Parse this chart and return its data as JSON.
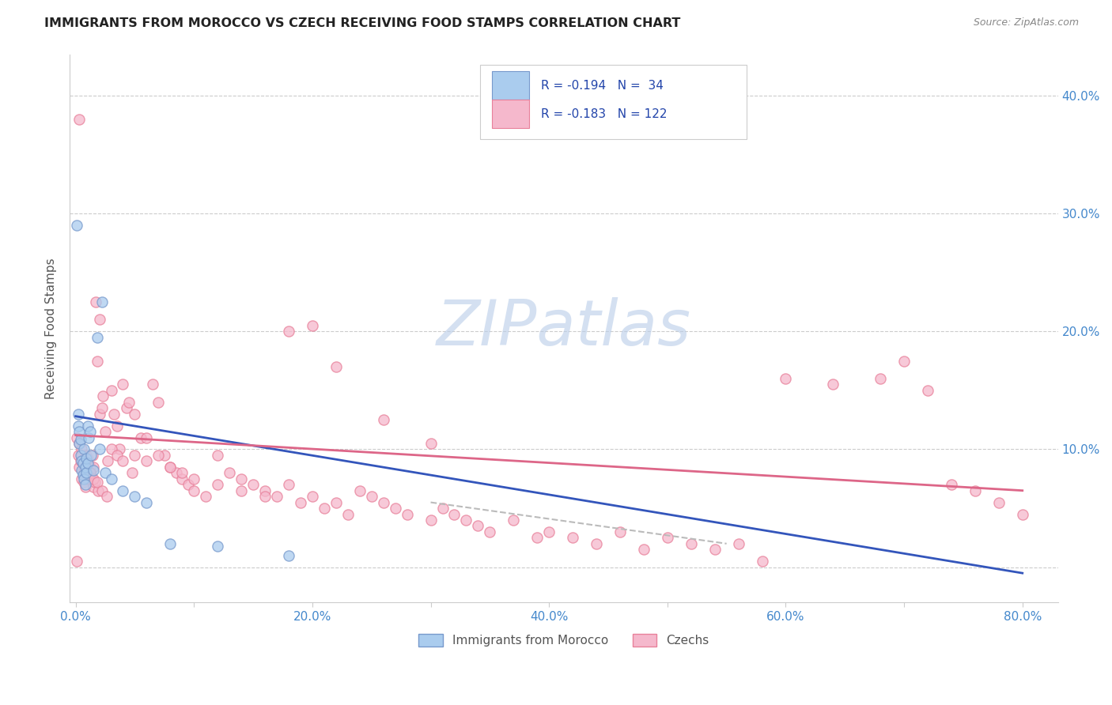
{
  "title": "IMMIGRANTS FROM MOROCCO VS CZECH RECEIVING FOOD STAMPS CORRELATION CHART",
  "source": "Source: ZipAtlas.com",
  "ylabel": "Receiving Food Stamps",
  "xlim": [
    -0.005,
    0.83
  ],
  "ylim": [
    -0.03,
    0.435
  ],
  "morocco_color": "#aaccee",
  "morocco_edge": "#7799cc",
  "czech_color": "#f5b8cc",
  "czech_edge": "#e8809a",
  "morocco_label": "Immigrants from Morocco",
  "czech_label": "Czechs",
  "morocco_R": "-0.194",
  "morocco_N": "34",
  "czech_R": "-0.183",
  "czech_N": "122",
  "trendline_morocco_color": "#3355bb",
  "trendline_czech_color": "#dd6688",
  "trendline_dashed_color": "#bbbbbb",
  "watermark": "ZIPatlas",
  "watermark_color_zip": "#b8cce8",
  "watermark_color_atlas": "#c8d8c8",
  "tick_color": "#4488cc",
  "grid_color": "#cccccc",
  "background_color": "#ffffff",
  "morocco_x": [
    0.001,
    0.002,
    0.002,
    0.003,
    0.003,
    0.004,
    0.004,
    0.005,
    0.005,
    0.006,
    0.006,
    0.007,
    0.007,
    0.008,
    0.008,
    0.009,
    0.009,
    0.01,
    0.01,
    0.011,
    0.012,
    0.013,
    0.015,
    0.018,
    0.02,
    0.022,
    0.025,
    0.03,
    0.04,
    0.05,
    0.06,
    0.08,
    0.12,
    0.18
  ],
  "morocco_y": [
    0.29,
    0.13,
    0.12,
    0.115,
    0.105,
    0.108,
    0.095,
    0.09,
    0.082,
    0.088,
    0.078,
    0.075,
    0.1,
    0.085,
    0.07,
    0.092,
    0.08,
    0.12,
    0.088,
    0.11,
    0.115,
    0.095,
    0.082,
    0.195,
    0.1,
    0.225,
    0.08,
    0.075,
    0.065,
    0.06,
    0.055,
    0.02,
    0.018,
    0.01
  ],
  "czech_x": [
    0.001,
    0.002,
    0.003,
    0.003,
    0.004,
    0.005,
    0.005,
    0.006,
    0.007,
    0.007,
    0.008,
    0.008,
    0.009,
    0.01,
    0.01,
    0.011,
    0.012,
    0.013,
    0.014,
    0.015,
    0.015,
    0.016,
    0.017,
    0.018,
    0.019,
    0.02,
    0.02,
    0.022,
    0.023,
    0.025,
    0.027,
    0.03,
    0.032,
    0.035,
    0.037,
    0.04,
    0.043,
    0.045,
    0.048,
    0.05,
    0.055,
    0.06,
    0.065,
    0.07,
    0.075,
    0.08,
    0.085,
    0.09,
    0.095,
    0.1,
    0.11,
    0.12,
    0.13,
    0.14,
    0.15,
    0.16,
    0.17,
    0.18,
    0.19,
    0.2,
    0.21,
    0.22,
    0.23,
    0.24,
    0.25,
    0.26,
    0.27,
    0.28,
    0.3,
    0.31,
    0.32,
    0.33,
    0.34,
    0.35,
    0.37,
    0.39,
    0.4,
    0.42,
    0.44,
    0.46,
    0.48,
    0.5,
    0.52,
    0.54,
    0.56,
    0.58,
    0.6,
    0.64,
    0.68,
    0.7,
    0.72,
    0.74,
    0.76,
    0.78,
    0.8,
    0.001,
    0.003,
    0.005,
    0.007,
    0.009,
    0.012,
    0.015,
    0.018,
    0.022,
    0.026,
    0.03,
    0.035,
    0.04,
    0.05,
    0.06,
    0.07,
    0.08,
    0.09,
    0.1,
    0.12,
    0.14,
    0.16,
    0.18,
    0.2,
    0.22,
    0.26,
    0.3
  ],
  "czech_y": [
    0.11,
    0.095,
    0.085,
    0.105,
    0.09,
    0.1,
    0.075,
    0.088,
    0.082,
    0.072,
    0.079,
    0.068,
    0.095,
    0.075,
    0.092,
    0.08,
    0.085,
    0.078,
    0.095,
    0.085,
    0.068,
    0.072,
    0.225,
    0.175,
    0.065,
    0.21,
    0.13,
    0.135,
    0.145,
    0.115,
    0.09,
    0.15,
    0.13,
    0.12,
    0.1,
    0.155,
    0.135,
    0.14,
    0.08,
    0.095,
    0.11,
    0.09,
    0.155,
    0.14,
    0.095,
    0.085,
    0.08,
    0.075,
    0.07,
    0.065,
    0.06,
    0.095,
    0.08,
    0.075,
    0.07,
    0.065,
    0.06,
    0.07,
    0.055,
    0.06,
    0.05,
    0.055,
    0.045,
    0.065,
    0.06,
    0.055,
    0.05,
    0.045,
    0.04,
    0.05,
    0.045,
    0.04,
    0.035,
    0.03,
    0.04,
    0.025,
    0.03,
    0.025,
    0.02,
    0.03,
    0.015,
    0.025,
    0.02,
    0.015,
    0.02,
    0.005,
    0.16,
    0.155,
    0.16,
    0.175,
    0.15,
    0.07,
    0.065,
    0.055,
    0.045,
    0.005,
    0.38,
    0.095,
    0.09,
    0.085,
    0.08,
    0.075,
    0.072,
    0.065,
    0.06,
    0.1,
    0.095,
    0.09,
    0.13,
    0.11,
    0.095,
    0.085,
    0.08,
    0.075,
    0.07,
    0.065,
    0.06,
    0.2,
    0.205,
    0.17,
    0.125,
    0.105
  ],
  "trendline_morocco_x0": 0.0,
  "trendline_morocco_x1": 0.8,
  "trendline_morocco_y0": 0.128,
  "trendline_morocco_y1": -0.005,
  "trendline_czech_x0": 0.0,
  "trendline_czech_x1": 0.8,
  "trendline_czech_y0": 0.112,
  "trendline_czech_y1": 0.065,
  "trendline_dashed_x0": 0.3,
  "trendline_dashed_x1": 0.55,
  "trendline_dashed_y0": 0.055,
  "trendline_dashed_y1": 0.02
}
